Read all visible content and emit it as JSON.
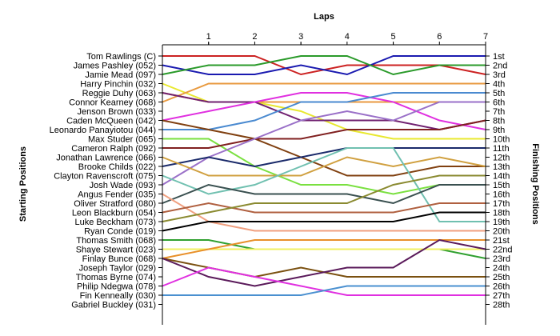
{
  "chart_data": {
    "type": "line",
    "title": "",
    "xlabel": "Laps",
    "ylabel_left": "Starting Positions",
    "ylabel_right": "Finishing Positions",
    "x": [
      0,
      1,
      2,
      3,
      4,
      5,
      6,
      7
    ],
    "x_tick_labels": [
      "1",
      "2",
      "3",
      "4",
      "5",
      "6",
      "7"
    ],
    "ylim": [
      1,
      28
    ],
    "y_inverted": true,
    "grid": false,
    "starting_labels": [
      "Tom Rawlings (C)",
      "James Pashley (052)",
      "Jamie Mead (097)",
      "Harry Pinchin (032)",
      "Reggie Duhy (063)",
      "Connor Kearney (068)",
      "Jenson Brown (033)",
      "Caden McQueen (042)",
      "Leonardo Panayiotou (044)",
      "Max Studer (065)",
      "Cameron Ralph (092)",
      "Jonathan Lawrence (066)",
      "Brooke Childs (022)",
      "Clayton Ravenscroft (075)",
      "Josh Wade (093)",
      "Angus Fender (035)",
      "Oliver Stratford (080)",
      "Leon Blackburn (054)",
      "Luke Beckham (073)",
      "Ryan Conde (019)",
      "Thomas Smith (068)",
      "Shaye Stewart (023)",
      "Finlay Bunce (068)",
      "Joseph Taylor (029)",
      "Thomas Byrne (074)",
      "Philip Ndegwa (078)",
      "Fin Kenneally (030)",
      "Gabriel Buckley (031)"
    ],
    "finishing_labels": [
      "1st",
      "2nd",
      "3rd",
      "4th",
      "5th",
      "6th",
      "7th",
      "8th",
      "9th",
      "10th",
      "11th",
      "12th",
      "13th",
      "14th",
      "15th",
      "16th",
      "17th",
      "18th",
      "19th",
      "20th",
      "21st",
      "22nd",
      "23rd",
      "24th",
      "25th",
      "26th",
      "27th",
      "28th"
    ],
    "series": [
      {
        "values": [
          1,
          1,
          1,
          3,
          2,
          2,
          2,
          3
        ],
        "color": "#cc2222"
      },
      {
        "values": [
          2,
          3,
          3,
          2,
          3,
          1,
          1,
          1
        ],
        "color": "#1a1ab0"
      },
      {
        "values": [
          3,
          2,
          2,
          1,
          1,
          3,
          2,
          2
        ],
        "color": "#2a9a2a"
      },
      {
        "values": [
          4,
          6,
          6,
          7,
          9,
          10,
          10,
          10
        ],
        "color": "#e8e830"
      },
      {
        "values": [
          5,
          6,
          6,
          6,
          6,
          6,
          6,
          6
        ],
        "color": "#e89a40"
      },
      {
        "values": [
          6,
          4,
          4,
          4,
          4,
          4,
          4,
          4
        ],
        "color": "#e89a40"
      },
      {
        "values": [
          5,
          6,
          6,
          8,
          8,
          8,
          9,
          8
        ],
        "color": "#702070"
      },
      {
        "values": [
          8,
          7,
          6,
          5,
          5,
          6,
          8,
          9
        ],
        "color": "#e030e0"
      },
      {
        "values": [
          9,
          9,
          8,
          6,
          6,
          5,
          5,
          5
        ],
        "color": "#4a8ad0"
      },
      {
        "values": [
          8,
          9,
          10,
          12,
          14,
          14,
          13,
          13
        ],
        "color": "#804010"
      },
      {
        "values": [
          10,
          10,
          13,
          15,
          15,
          16,
          15,
          15
        ],
        "color": "#7ae040"
      },
      {
        "values": [
          11,
          11,
          10,
          10,
          9,
          9,
          9,
          8
        ],
        "color": "#802020"
      },
      {
        "values": [
          15,
          12,
          10,
          8,
          7,
          8,
          6,
          6
        ],
        "color": "#9a70c8"
      },
      {
        "values": [
          13,
          12,
          13,
          12,
          11,
          11,
          11,
          11
        ],
        "color": "#1a2a6a"
      },
      {
        "values": [
          12,
          14,
          14,
          14,
          12,
          13,
          12,
          13
        ],
        "color": "#d0a040"
      },
      {
        "values": [
          14,
          16,
          15,
          13,
          11,
          11,
          19,
          19
        ],
        "color": "#70c0b0"
      },
      {
        "values": [
          17,
          15,
          16,
          16,
          16,
          17,
          15,
          15
        ],
        "color": "#3a5050"
      },
      {
        "values": [
          16,
          19,
          20,
          20,
          20,
          20,
          20,
          20
        ],
        "color": "#f0a080"
      },
      {
        "values": [
          18,
          17,
          18,
          18,
          18,
          18,
          17,
          17
        ],
        "color": "#b06040"
      },
      {
        "values": [
          19,
          18,
          17,
          17,
          17,
          15,
          14,
          14
        ],
        "color": "#8a8a30"
      },
      {
        "values": [
          20,
          19,
          19,
          19,
          19,
          19,
          18,
          18
        ],
        "color": "#000000"
      },
      {
        "values": [
          21,
          21,
          22,
          22,
          22,
          22,
          22,
          23
        ],
        "color": "#30a030"
      },
      {
        "values": [
          22,
          22,
          22,
          22,
          22,
          22,
          22,
          22
        ],
        "color": "#f0f060"
      },
      {
        "values": [
          23,
          22,
          21,
          21,
          21,
          21,
          21,
          21
        ],
        "color": "#e8902a"
      },
      {
        "values": [
          23,
          24,
          25,
          24,
          25,
          25,
          25,
          25
        ],
        "color": "#7a5010"
      },
      {
        "values": [
          23,
          25,
          26,
          25,
          24,
          24,
          21,
          22
        ],
        "color": "#5a1a5a"
      },
      {
        "values": [
          26,
          24,
          25,
          26,
          27,
          27,
          27,
          27
        ],
        "color": "#e030e0"
      },
      {
        "values": [
          27,
          27,
          27,
          27,
          26,
          26,
          26,
          26
        ],
        "color": "#4a90d0"
      }
    ]
  }
}
